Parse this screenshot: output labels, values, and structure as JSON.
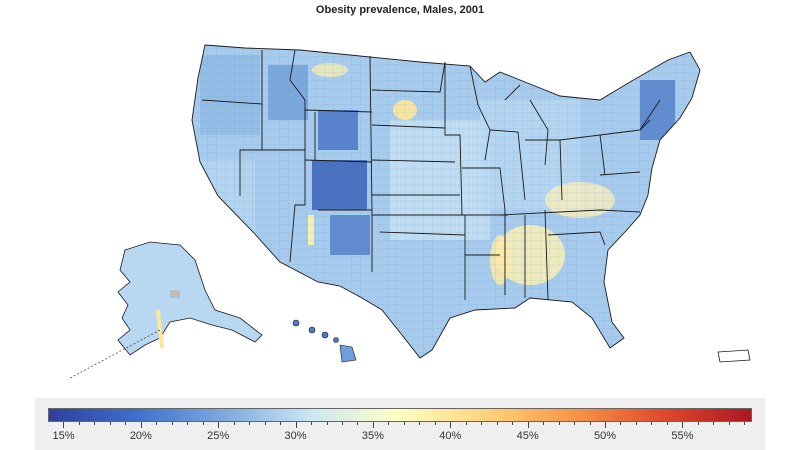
{
  "title": "Obesity prevalence, Males, 2001",
  "legend": {
    "min": 14,
    "max": 59.5,
    "ticks": [
      "15%",
      "20%",
      "25%",
      "30%",
      "35%",
      "40%",
      "45%",
      "50%",
      "55%"
    ],
    "tick_values": [
      15,
      20,
      25,
      30,
      35,
      40,
      45,
      50,
      55
    ],
    "colors": [
      "#2f3f9e",
      "#3f6fcc",
      "#7fa9df",
      "#cbe8f4",
      "#ffffc2",
      "#fdd27a",
      "#f79448",
      "#de4a2c",
      "#ad1622"
    ]
  },
  "map_colors": {
    "dark_blue": "#2e57b0",
    "mid_blue": "#6f9fd9",
    "light_blue": "#a7cbec",
    "pale_blue": "#cfe5f4",
    "yellow": "#fff2b0",
    "borders": "#1a1a1a",
    "missing": "#bdbdbd"
  }
}
